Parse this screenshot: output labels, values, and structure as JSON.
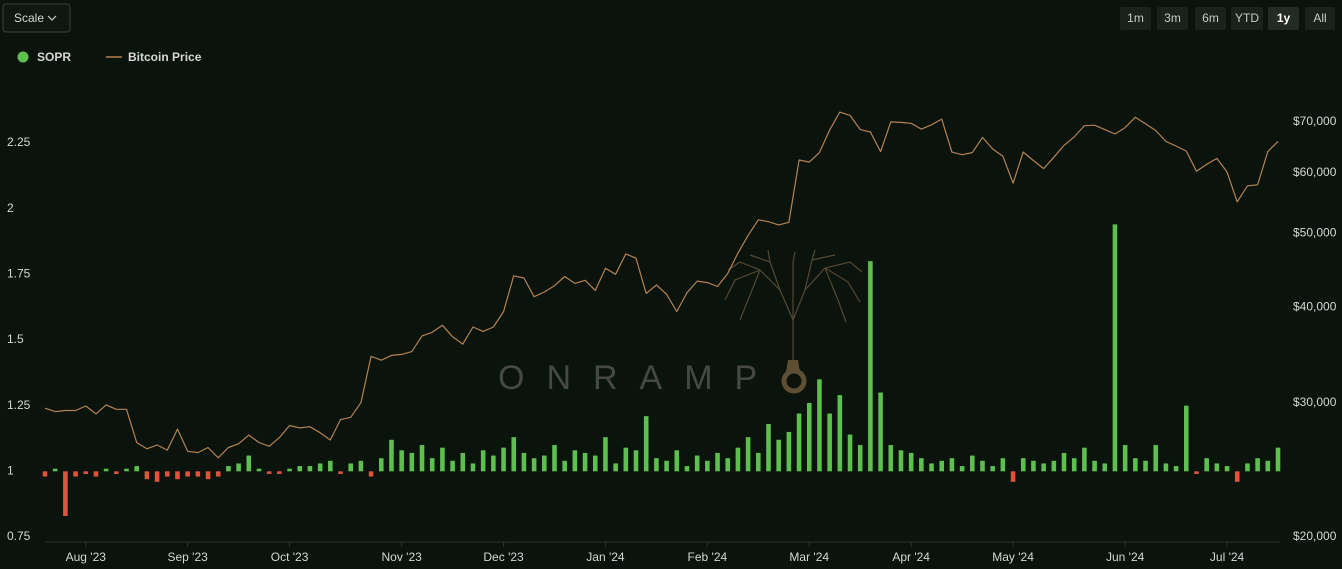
{
  "toolbar": {
    "scale": "Scale",
    "ranges": [
      "1m",
      "3m",
      "6m",
      "YTD",
      "1y",
      "All"
    ],
    "active_range": 4
  },
  "watermark": "ONRAMP",
  "chart_data": {
    "type": "combo",
    "categories": [
      null,
      null,
      null,
      null,
      "Aug '23",
      null,
      null,
      null,
      null,
      null,
      null,
      null,
      null,
      null,
      "Sep '23",
      null,
      null,
      null,
      null,
      null,
      null,
      null,
      null,
      null,
      "Oct '23",
      null,
      null,
      null,
      null,
      null,
      null,
      null,
      null,
      null,
      null,
      "Nov '23",
      null,
      null,
      null,
      null,
      null,
      null,
      null,
      null,
      null,
      "Dec '23",
      null,
      null,
      null,
      null,
      null,
      null,
      null,
      null,
      null,
      "Jan '24",
      null,
      null,
      null,
      null,
      null,
      null,
      null,
      null,
      null,
      "Feb '24",
      null,
      null,
      null,
      null,
      null,
      null,
      null,
      null,
      null,
      "Mar '24",
      null,
      null,
      null,
      null,
      null,
      null,
      null,
      null,
      null,
      "Apr '24",
      null,
      null,
      null,
      null,
      null,
      null,
      null,
      null,
      null,
      "May '24",
      null,
      null,
      null,
      null,
      null,
      null,
      null,
      null,
      null,
      null,
      "Jun '24",
      null,
      null,
      null,
      null,
      null,
      null,
      null,
      null,
      null,
      "Jul '24",
      null,
      null,
      null,
      null,
      null
    ],
    "series": [
      {
        "name": "SOPR",
        "type": "bar",
        "color": "#5cbf4e",
        "negative_color": "#e0533a",
        "base": 1,
        "values": [
          0.98,
          1.01,
          0.83,
          0.98,
          0.99,
          0.98,
          1.01,
          0.99,
          1.01,
          1.02,
          0.97,
          0.96,
          0.98,
          0.97,
          0.98,
          0.98,
          0.97,
          0.98,
          1.02,
          1.03,
          1.06,
          1.01,
          0.99,
          0.99,
          1.01,
          1.02,
          1.02,
          1.03,
          1.04,
          0.99,
          1.03,
          1.04,
          0.98,
          1.05,
          1.12,
          1.08,
          1.07,
          1.1,
          1.05,
          1.09,
          1.04,
          1.07,
          1.03,
          1.08,
          1.06,
          1.09,
          1.13,
          1.07,
          1.05,
          1.06,
          1.1,
          1.04,
          1.08,
          1.07,
          1.06,
          1.13,
          1.03,
          1.09,
          1.08,
          1.21,
          1.05,
          1.04,
          1.08,
          1.02,
          1.06,
          1.04,
          1.07,
          1.05,
          1.09,
          1.13,
          1.07,
          1.18,
          1.12,
          1.15,
          1.22,
          1.26,
          1.35,
          1.22,
          1.29,
          1.14,
          1.1,
          1.8,
          1.3,
          1.1,
          1.08,
          1.07,
          1.05,
          1.03,
          1.04,
          1.05,
          1.02,
          1.06,
          1.04,
          1.02,
          1.05,
          0.96,
          1.05,
          1.04,
          1.03,
          1.04,
          1.07,
          1.05,
          1.09,
          1.04,
          1.03,
          1.94,
          1.1,
          1.05,
          1.04,
          1.1,
          1.03,
          1.02,
          1.25,
          0.99,
          1.05,
          1.03,
          1.02,
          0.96,
          1.03,
          1.05,
          1.04,
          1.09
        ]
      },
      {
        "name": "Bitcoin Price",
        "type": "line",
        "axis": "y2",
        "color": "#b5824f",
        "values": [
          29500,
          29200,
          29300,
          29300,
          29700,
          29000,
          29800,
          29400,
          29400,
          26600,
          26100,
          26400,
          26000,
          27700,
          25900,
          25800,
          26200,
          25400,
          26200,
          26500,
          27200,
          26600,
          26300,
          27000,
          28000,
          27800,
          27900,
          27400,
          26800,
          28500,
          28700,
          30000,
          34500,
          34100,
          34600,
          34700,
          35000,
          36700,
          37100,
          37900,
          36600,
          35800,
          37700,
          37200,
          37700,
          39500,
          44000,
          43700,
          41300,
          41900,
          42700,
          43900,
          43000,
          43400,
          42100,
          45000,
          44200,
          47000,
          46400,
          41700,
          42800,
          41600,
          39500,
          41800,
          43300,
          43100,
          42600,
          44300,
          47100,
          49700,
          52100,
          51800,
          51300,
          51700,
          62400,
          62000,
          63800,
          68300,
          72100,
          71400,
          68400,
          67900,
          64000,
          70000,
          69900,
          69700,
          68500,
          69400,
          70600,
          63900,
          63400,
          63800,
          66800,
          64500,
          63100,
          58200,
          63900,
          62300,
          60800,
          62900,
          65200,
          66900,
          69200,
          69300,
          68400,
          67500,
          68800,
          71000,
          69600,
          68200,
          66000,
          65100,
          64100,
          60300,
          61600,
          62700,
          60200,
          55000,
          57700,
          57900,
          64000,
          66000
        ]
      }
    ],
    "ylim": [
      0.75,
      2.4
    ],
    "yticks": [
      0.75,
      1,
      1.25,
      1.5,
      1.75,
      2,
      2.25
    ],
    "y2lim": [
      20000,
      74000
    ],
    "y2scale": "log",
    "y2ticks": [
      {
        "value": 20000,
        "label": "$20,000"
      },
      {
        "value": 30000,
        "label": "$30,000"
      },
      {
        "value": 40000,
        "label": "$40,000"
      },
      {
        "value": 50000,
        "label": "$50,000"
      },
      {
        "value": 60000,
        "label": "$60,000"
      },
      {
        "value": 70000,
        "label": "$70,000"
      }
    ],
    "grid": false
  }
}
